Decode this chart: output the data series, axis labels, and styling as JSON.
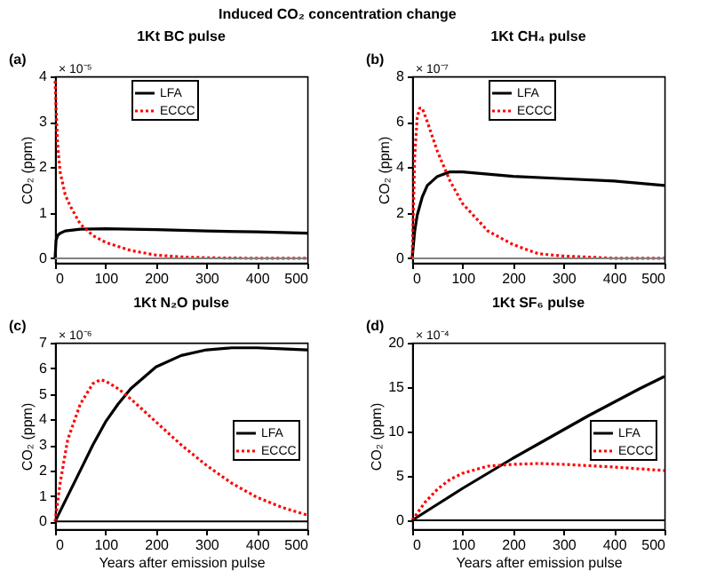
{
  "chart_data": [
    {
      "type": "line",
      "title": "1Kt BC pulse",
      "ylabel": "CO₂ (ppm)",
      "annotations": [
        "(a)",
        "× 10⁻⁵",
        "Induced CO₂ concentration change"
      ],
      "xlim": [
        0,
        500
      ],
      "xticks": [
        0,
        100,
        200,
        300,
        400,
        500
      ],
      "ylim": [
        -0.1,
        4
      ],
      "yticks": [
        0,
        1,
        2,
        3,
        4
      ],
      "legend": "top",
      "grid": false,
      "ref_lines": [
        {
          "axis": "y",
          "value": 0,
          "color": "#808080"
        }
      ],
      "series": [
        {
          "name": "LFA",
          "color": "#000000",
          "line_style": "solid",
          "x": [
            0,
            2,
            5,
            10,
            20,
            50,
            100,
            200,
            300,
            400,
            500
          ],
          "values": [
            0,
            0.4,
            0.5,
            0.55,
            0.6,
            0.64,
            0.65,
            0.63,
            0.6,
            0.58,
            0.55
          ]
        },
        {
          "name": "ECCC",
          "color": "#ff0000",
          "line_style": "dotted",
          "x": [
            0,
            2,
            5,
            10,
            20,
            30,
            50,
            75,
            100,
            150,
            200,
            250,
            300,
            400,
            500
          ],
          "values": [
            3.9,
            3.3,
            2.5,
            1.9,
            1.4,
            1.15,
            0.75,
            0.5,
            0.35,
            0.17,
            0.07,
            0.03,
            0.01,
            0,
            0
          ]
        }
      ]
    },
    {
      "type": "line",
      "title": "1Kt CH₄ pulse",
      "ylabel": "CO₂ (ppm)",
      "annotations": [
        "(b)",
        "× 10⁻⁷"
      ],
      "xlim": [
        0,
        500
      ],
      "xticks": [
        0,
        100,
        200,
        300,
        400,
        500
      ],
      "ylim": [
        -0.2,
        8
      ],
      "yticks": [
        0,
        2,
        4,
        6,
        8
      ],
      "legend": "top",
      "grid": false,
      "ref_lines": [
        {
          "axis": "y",
          "value": 0,
          "color": "#808080"
        }
      ],
      "series": [
        {
          "name": "LFA",
          "color": "#000000",
          "line_style": "solid",
          "x": [
            0,
            5,
            10,
            20,
            30,
            50,
            75,
            100,
            150,
            200,
            300,
            400,
            500
          ],
          "values": [
            0,
            1.2,
            1.9,
            2.7,
            3.2,
            3.6,
            3.8,
            3.8,
            3.7,
            3.6,
            3.5,
            3.4,
            3.2
          ]
        },
        {
          "name": "ECCC",
          "color": "#ff0000",
          "line_style": "dotted",
          "x": [
            0,
            5,
            10,
            15,
            20,
            30,
            50,
            75,
            100,
            150,
            200,
            250,
            300,
            400,
            500
          ],
          "values": [
            0,
            4.5,
            6.2,
            6.6,
            6.6,
            6.0,
            4.7,
            3.4,
            2.4,
            1.2,
            0.6,
            0.2,
            0.1,
            0,
            0
          ]
        }
      ]
    },
    {
      "type": "line",
      "title": "1Kt N₂O pulse",
      "xlabel": "Years after emission pulse",
      "ylabel": "CO₂ (ppm)",
      "annotations": [
        "(c)",
        "× 10⁻⁶"
      ],
      "xlim": [
        0,
        500
      ],
      "xticks": [
        0,
        100,
        200,
        300,
        400,
        500
      ],
      "ylim": [
        -0.3,
        7
      ],
      "yticks": [
        0,
        1,
        2,
        3,
        4,
        5,
        6,
        7
      ],
      "legend": "right",
      "grid": false,
      "ref_lines": [
        {
          "axis": "y",
          "value": 0,
          "color": "#000000"
        }
      ],
      "series": [
        {
          "name": "LFA",
          "color": "#000000",
          "line_style": "solid",
          "x": [
            0,
            25,
            50,
            75,
            100,
            125,
            150,
            200,
            250,
            300,
            350,
            400,
            450,
            500
          ],
          "values": [
            0,
            1,
            2,
            3,
            3.9,
            4.6,
            5.2,
            6.05,
            6.5,
            6.72,
            6.8,
            6.8,
            6.76,
            6.72
          ]
        },
        {
          "name": "ECCC",
          "color": "#ff0000",
          "line_style": "dotted",
          "x": [
            0,
            10,
            25,
            50,
            75,
            90,
            100,
            125,
            150,
            200,
            250,
            300,
            350,
            400,
            450,
            500
          ],
          "values": [
            0,
            1.5,
            3.2,
            4.6,
            5.4,
            5.55,
            5.5,
            5.2,
            4.8,
            3.9,
            3.0,
            2.2,
            1.5,
            0.95,
            0.55,
            0.25
          ]
        }
      ]
    },
    {
      "type": "line",
      "title": "1Kt SF₆ pulse",
      "xlabel": "Years after emission pulse",
      "ylabel": "CO₂ (ppm)",
      "annotations": [
        "(d)",
        "× 10⁻⁴"
      ],
      "xlim": [
        0,
        500
      ],
      "xticks": [
        0,
        100,
        200,
        300,
        400,
        500
      ],
      "ylim": [
        -1,
        20
      ],
      "yticks": [
        0,
        5,
        10,
        15,
        20
      ],
      "legend": "right",
      "grid": false,
      "ref_lines": [
        {
          "axis": "y",
          "value": 0,
          "color": "#000000"
        }
      ],
      "series": [
        {
          "name": "LFA",
          "color": "#000000",
          "line_style": "solid",
          "x": [
            0,
            50,
            100,
            150,
            200,
            250,
            300,
            350,
            400,
            450,
            500
          ],
          "values": [
            0,
            1.8,
            3.6,
            5.3,
            7.0,
            8.6,
            10.2,
            11.8,
            13.3,
            14.8,
            16.2
          ]
        },
        {
          "name": "ECCC",
          "color": "#ff0000",
          "line_style": "dotted",
          "x": [
            0,
            25,
            50,
            75,
            100,
            150,
            200,
            250,
            300,
            400,
            500
          ],
          "values": [
            0,
            2.0,
            3.5,
            4.6,
            5.3,
            6.1,
            6.3,
            6.4,
            6.3,
            6.0,
            5.6
          ]
        }
      ]
    }
  ]
}
